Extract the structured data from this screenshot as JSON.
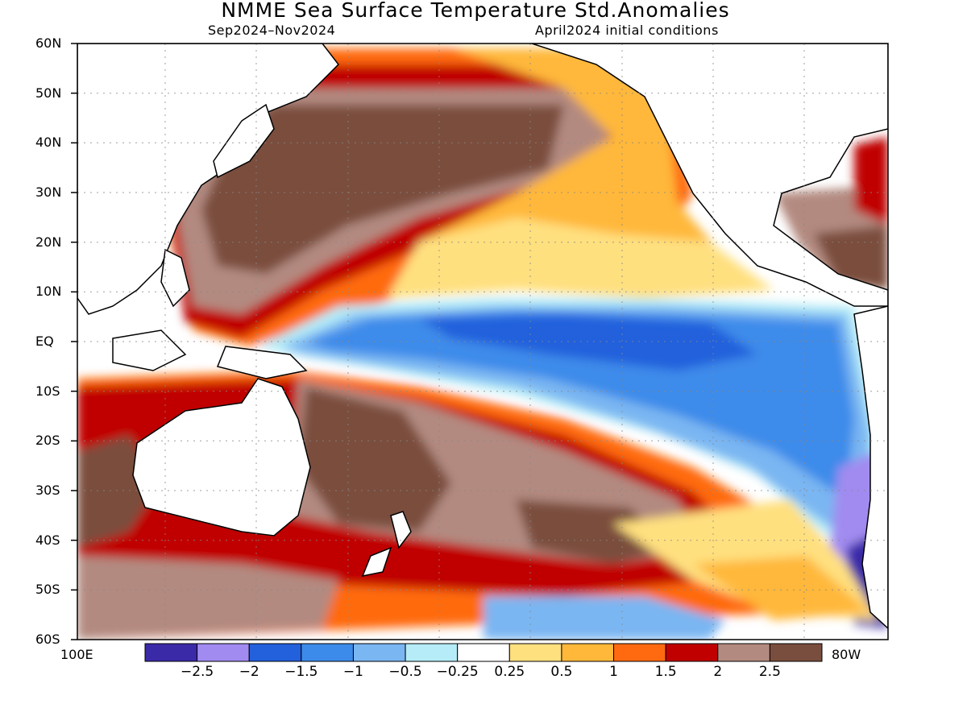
{
  "title": "NMME Sea Surface Temperature Std.Anomalies",
  "subtitle_left": "Sep2024–Nov2024",
  "subtitle_right": "April2024 initial conditions",
  "lat_labels": [
    "60N",
    "50N",
    "40N",
    "30N",
    "20N",
    "10N",
    "EQ",
    "10S",
    "20S",
    "30S",
    "40S",
    "50S",
    "60S"
  ],
  "lon_left": "100E",
  "lon_right": "80W",
  "colorbar": {
    "colors": [
      "#3a2aa8",
      "#a18bf0",
      "#2360dc",
      "#3c8bea",
      "#7ab6f2",
      "#b5ecf7",
      "#ffffff",
      "#ffe07f",
      "#ffb83a",
      "#ff6a10",
      "#c00000",
      "#b38a80",
      "#7a4e3e"
    ],
    "labels": [
      "−2.5",
      "−2",
      "−1.5",
      "−1",
      "−0.5",
      "−0.25",
      "0.25",
      "0.5",
      "1",
      "1.5",
      "2",
      "2.5"
    ]
  }
}
